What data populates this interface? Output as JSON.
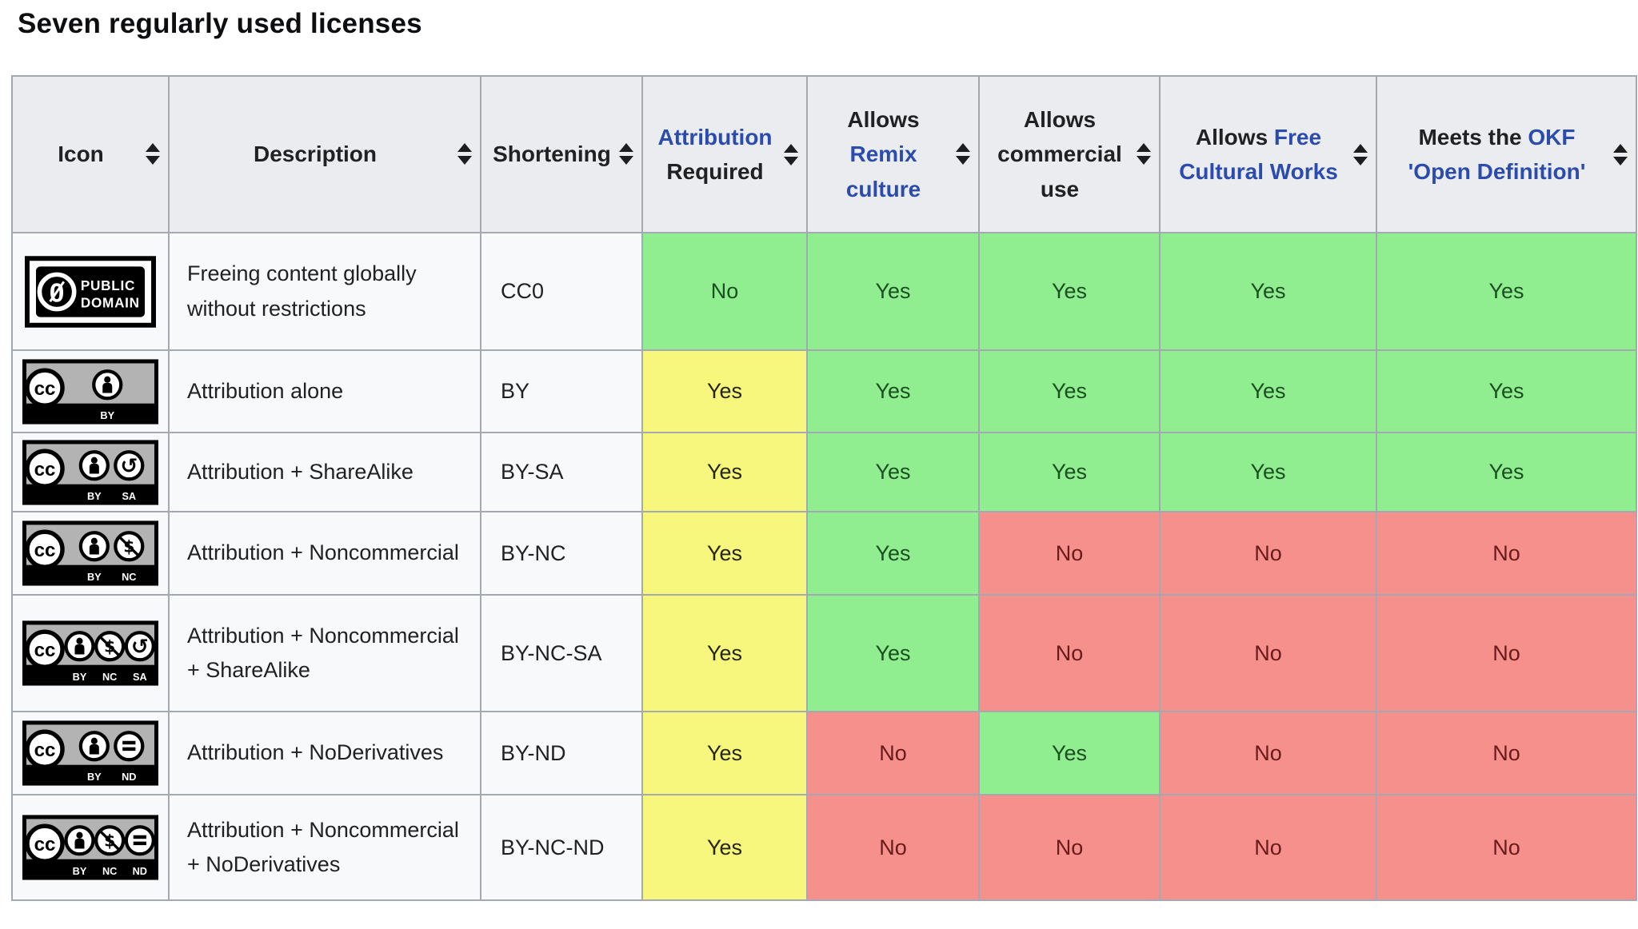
{
  "title": "Seven regularly used licenses",
  "colors": {
    "page_bg": "#ffffff",
    "header_bg": "#eaecf0",
    "cell_bg": "#f8f9fa",
    "border": "#a2a9b1",
    "link": "#2b4cad",
    "text": "#202122",
    "status_yes_bg": "#90ee90",
    "status_yes_text": "#1b4f22",
    "status_partial_bg": "#f7f67d",
    "status_partial_text": "#26260e",
    "status_no_bg": "#f5908d",
    "status_no_text": "#6b1a1a",
    "sort_icon": "#1b1d1f"
  },
  "table": {
    "headers": [
      {
        "id": "icon",
        "parts": [
          {
            "text": "Icon"
          }
        ]
      },
      {
        "id": "description",
        "parts": [
          {
            "text": "Description"
          }
        ]
      },
      {
        "id": "shortening",
        "parts": [
          {
            "text": "Shortening"
          }
        ]
      },
      {
        "id": "attribution-required",
        "parts": [
          {
            "text": "Attribution",
            "link": true
          },
          {
            "text": " Required"
          }
        ]
      },
      {
        "id": "allows-remix-culture",
        "parts": [
          {
            "text": "Allows "
          },
          {
            "text": "Remix culture",
            "link": true
          }
        ]
      },
      {
        "id": "allows-commercial-use",
        "parts": [
          {
            "text": "Allows commercial use"
          }
        ]
      },
      {
        "id": "allows-free-cultural-works",
        "parts": [
          {
            "text": "Allows "
          },
          {
            "text": "Free Cultural Works",
            "link": true
          }
        ]
      },
      {
        "id": "meets-okf-open-definition",
        "parts": [
          {
            "text": "Meets the "
          },
          {
            "text": "OKF 'Open Definition'",
            "link": true
          }
        ]
      }
    ],
    "rows": [
      {
        "icon": {
          "type": "pd",
          "name": "cc0-public-domain-badge",
          "cc_label": "0",
          "text_lines": [
            "PUBLIC",
            "DOMAIN"
          ]
        },
        "description": "Freeing content globally without restrictions",
        "shortening": "CC0",
        "values": [
          {
            "text": "No",
            "status": "yes"
          },
          {
            "text": "Yes",
            "status": "yes"
          },
          {
            "text": "Yes",
            "status": "yes"
          },
          {
            "text": "Yes",
            "status": "yes"
          },
          {
            "text": "Yes",
            "status": "yes"
          }
        ]
      },
      {
        "icon": {
          "type": "cc",
          "name": "cc-by-badge",
          "modules": [
            "by"
          ],
          "labels": [
            "BY"
          ]
        },
        "description": "Attribution alone",
        "shortening": "BY",
        "values": [
          {
            "text": "Yes",
            "status": "partial"
          },
          {
            "text": "Yes",
            "status": "yes"
          },
          {
            "text": "Yes",
            "status": "yes"
          },
          {
            "text": "Yes",
            "status": "yes"
          },
          {
            "text": "Yes",
            "status": "yes"
          }
        ]
      },
      {
        "icon": {
          "type": "cc",
          "name": "cc-by-sa-badge",
          "modules": [
            "by",
            "sa"
          ],
          "labels": [
            "BY",
            "SA"
          ]
        },
        "description": "Attribution + ShareAlike",
        "shortening": "BY-SA",
        "values": [
          {
            "text": "Yes",
            "status": "partial"
          },
          {
            "text": "Yes",
            "status": "yes"
          },
          {
            "text": "Yes",
            "status": "yes"
          },
          {
            "text": "Yes",
            "status": "yes"
          },
          {
            "text": "Yes",
            "status": "yes"
          }
        ]
      },
      {
        "icon": {
          "type": "cc",
          "name": "cc-by-nc-badge",
          "modules": [
            "by",
            "nc"
          ],
          "labels": [
            "BY",
            "NC"
          ]
        },
        "description": "Attribution + Noncommercial",
        "shortening": "BY-NC",
        "values": [
          {
            "text": "Yes",
            "status": "partial"
          },
          {
            "text": "Yes",
            "status": "yes"
          },
          {
            "text": "No",
            "status": "no"
          },
          {
            "text": "No",
            "status": "no"
          },
          {
            "text": "No",
            "status": "no"
          }
        ]
      },
      {
        "icon": {
          "type": "cc",
          "name": "cc-by-nc-sa-badge",
          "modules": [
            "by",
            "nc",
            "sa"
          ],
          "labels": [
            "BY",
            "NC",
            "SA"
          ]
        },
        "description": "Attribution + Noncommercial + ShareAlike",
        "shortening": "BY-NC-SA",
        "values": [
          {
            "text": "Yes",
            "status": "partial"
          },
          {
            "text": "Yes",
            "status": "yes"
          },
          {
            "text": "No",
            "status": "no"
          },
          {
            "text": "No",
            "status": "no"
          },
          {
            "text": "No",
            "status": "no"
          }
        ]
      },
      {
        "icon": {
          "type": "cc",
          "name": "cc-by-nd-badge",
          "modules": [
            "by",
            "nd"
          ],
          "labels": [
            "BY",
            "ND"
          ]
        },
        "description": "Attribution + NoDerivatives",
        "shortening": "BY-ND",
        "values": [
          {
            "text": "Yes",
            "status": "partial"
          },
          {
            "text": "No",
            "status": "no"
          },
          {
            "text": "Yes",
            "status": "yes"
          },
          {
            "text": "No",
            "status": "no"
          },
          {
            "text": "No",
            "status": "no"
          }
        ]
      },
      {
        "icon": {
          "type": "cc",
          "name": "cc-by-nc-nd-badge",
          "modules": [
            "by",
            "nc",
            "nd"
          ],
          "labels": [
            "BY",
            "NC",
            "ND"
          ]
        },
        "description": "Attribution + Noncommercial + NoDerivatives",
        "shortening": "BY-NC-ND",
        "values": [
          {
            "text": "Yes",
            "status": "partial"
          },
          {
            "text": "No",
            "status": "no"
          },
          {
            "text": "No",
            "status": "no"
          },
          {
            "text": "No",
            "status": "no"
          },
          {
            "text": "No",
            "status": "no"
          }
        ]
      }
    ]
  }
}
